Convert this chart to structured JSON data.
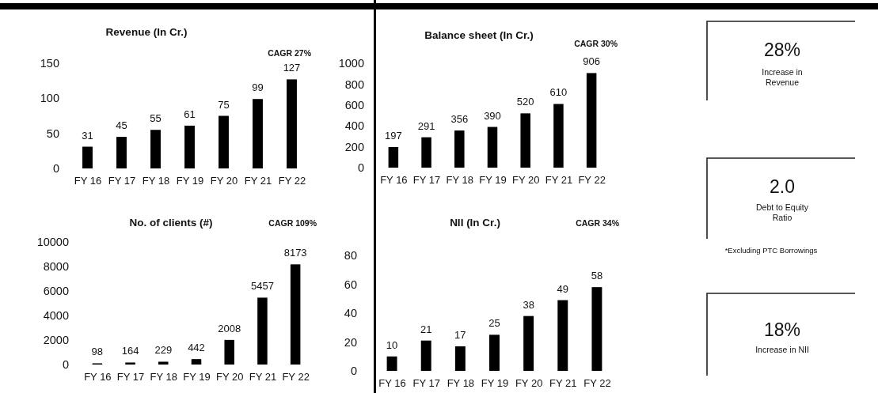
{
  "chart_data": [
    {
      "type": "bar",
      "title": "Revenue (In Cr.)",
      "categories": [
        "FY 16",
        "FY 17",
        "FY 18",
        "FY 19",
        "FY 20",
        "FY 21",
        "FY 22"
      ],
      "values": [
        31,
        45,
        55,
        61,
        75,
        99,
        127
      ],
      "color": "#000000",
      "ylim": [
        0,
        150
      ],
      "yticks": [
        0,
        50,
        100,
        150
      ],
      "data_labels": true,
      "annotations": [
        "CAGR 27%"
      ]
    },
    {
      "type": "bar",
      "title": "Balance sheet (In Cr.)",
      "categories": [
        "FY 16",
        "FY 17",
        "FY 18",
        "FY 19",
        "FY 20",
        "FY 21",
        "FY 22"
      ],
      "values": [
        197,
        291,
        356,
        390,
        520,
        610,
        906
      ],
      "color": "#000000",
      "ylim": [
        0,
        1000
      ],
      "yticks": [
        0,
        200,
        400,
        600,
        800,
        1000
      ],
      "data_labels": true,
      "annotations": [
        "CAGR 30%"
      ]
    },
    {
      "type": "bar",
      "title": "No. of clients (#)",
      "categories": [
        "FY 16",
        "FY 17",
        "FY 18",
        "FY 19",
        "FY 20",
        "FY 21",
        "FY 22"
      ],
      "values": [
        98,
        164,
        229,
        442,
        2008,
        5457,
        8173
      ],
      "color": "#000000",
      "ylim": [
        0,
        10000
      ],
      "yticks": [
        0,
        2000,
        4000,
        6000,
        8000,
        10000
      ],
      "data_labels": true,
      "annotations": [
        "CAGR 109%"
      ]
    },
    {
      "type": "bar",
      "title": "NII (In Cr.)",
      "categories": [
        "FY 16",
        "FY 17",
        "FY 18",
        "FY 19",
        "FY 20",
        "FY 21",
        "FY 22"
      ],
      "values": [
        10,
        21,
        17,
        25,
        38,
        49,
        58
      ],
      "color": "#000000",
      "ylim": [
        0,
        80
      ],
      "yticks": [
        0,
        20,
        40,
        60,
        80
      ],
      "data_labels": true,
      "annotations": [
        "CAGR 34%"
      ]
    },
    {
      "type": "other",
      "annotations": [
        "28%",
        "Increase in Revenue",
        "2.0",
        "Debt to Equity Ratio",
        "*Excluding PTC Borrowings",
        "18%",
        "Increase in NII"
      ]
    }
  ]
}
